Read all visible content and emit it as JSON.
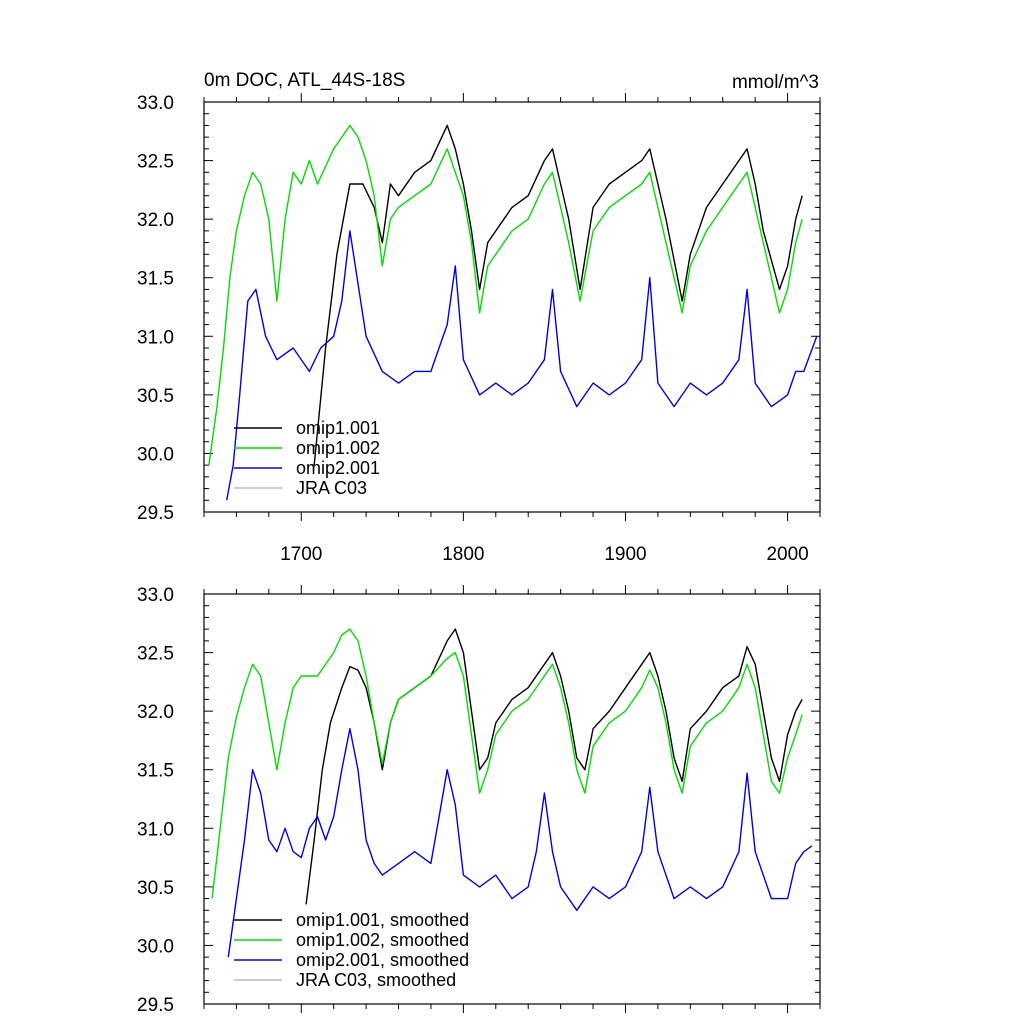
{
  "chart_data": [
    {
      "type": "line",
      "title": "0m DOC, ATL_44S-18S",
      "units": "mmol/m^3",
      "xlim": [
        1640,
        2020
      ],
      "ylim": [
        29.5,
        33.0
      ],
      "x_ticks": [
        1700,
        1800,
        1900,
        2000
      ],
      "y_ticks": [
        "29.5",
        "30.0",
        "30.5",
        "31.0",
        "31.5",
        "32.0",
        "32.5",
        "33.0"
      ],
      "legend_position": "bottom-left",
      "series": [
        {
          "name": "omip1.001",
          "color": "#000000",
          "x": [
            1708,
            1715,
            1722,
            1730,
            1738,
            1745,
            1750,
            1755,
            1760,
            1770,
            1780,
            1790,
            1795,
            1800,
            1805,
            1810,
            1815,
            1830,
            1840,
            1850,
            1855,
            1860,
            1865,
            1872,
            1880,
            1890,
            1900,
            1910,
            1915,
            1920,
            1925,
            1935,
            1940,
            1950,
            1960,
            1970,
            1975,
            1980,
            1985,
            1995,
            2000,
            2005,
            2009
          ],
          "y": [
            29.9,
            30.9,
            31.7,
            32.3,
            32.3,
            32.1,
            31.8,
            32.3,
            32.2,
            32.4,
            32.5,
            32.8,
            32.6,
            32.3,
            31.9,
            31.4,
            31.8,
            32.1,
            32.2,
            32.5,
            32.6,
            32.3,
            32.0,
            31.4,
            32.1,
            32.3,
            32.4,
            32.5,
            32.6,
            32.3,
            32.0,
            31.3,
            31.7,
            32.1,
            32.3,
            32.5,
            32.6,
            32.3,
            31.9,
            31.4,
            31.6,
            32.0,
            32.2
          ]
        },
        {
          "name": "omip1.002",
          "color": "#00dd00",
          "x": [
            1643,
            1648,
            1652,
            1656,
            1660,
            1665,
            1670,
            1675,
            1680,
            1685,
            1690,
            1695,
            1700,
            1705,
            1710,
            1720,
            1725,
            1730,
            1735,
            1740,
            1745,
            1750,
            1755,
            1760,
            1770,
            1780,
            1790,
            1800,
            1805,
            1810,
            1815,
            1830,
            1840,
            1850,
            1855,
            1860,
            1865,
            1872,
            1880,
            1890,
            1900,
            1910,
            1915,
            1920,
            1925,
            1935,
            1940,
            1950,
            1960,
            1970,
            1975,
            1980,
            1985,
            1995,
            2000,
            2005,
            2009
          ],
          "y": [
            29.9,
            30.4,
            30.9,
            31.5,
            31.9,
            32.2,
            32.4,
            32.3,
            32.0,
            31.3,
            32.0,
            32.4,
            32.3,
            32.5,
            32.3,
            32.6,
            32.7,
            32.8,
            32.7,
            32.5,
            32.2,
            31.6,
            32.0,
            32.1,
            32.2,
            32.3,
            32.6,
            32.2,
            31.8,
            31.2,
            31.6,
            31.9,
            32.0,
            32.3,
            32.4,
            32.1,
            31.8,
            31.3,
            31.9,
            32.1,
            32.2,
            32.3,
            32.4,
            32.1,
            31.8,
            31.2,
            31.6,
            31.9,
            32.1,
            32.3,
            32.4,
            32.1,
            31.8,
            31.2,
            31.4,
            31.8,
            32.0
          ]
        },
        {
          "name": "omip2.001",
          "color": "#0000e6",
          "x": [
            1654,
            1658,
            1662,
            1667,
            1672,
            1678,
            1685,
            1695,
            1705,
            1712,
            1720,
            1725,
            1730,
            1740,
            1750,
            1760,
            1770,
            1780,
            1790,
            1795,
            1800,
            1810,
            1820,
            1830,
            1840,
            1850,
            1855,
            1860,
            1870,
            1880,
            1890,
            1900,
            1910,
            1915,
            1920,
            1930,
            1940,
            1950,
            1960,
            1970,
            1975,
            1980,
            1990,
            2000,
            2005,
            2010,
            2018
          ],
          "y": [
            29.6,
            29.9,
            30.5,
            31.3,
            31.4,
            31.0,
            30.8,
            30.9,
            30.7,
            30.9,
            31.0,
            31.3,
            31.9,
            31.0,
            30.7,
            30.6,
            30.7,
            30.7,
            31.1,
            31.6,
            30.8,
            30.5,
            30.6,
            30.5,
            30.6,
            30.8,
            31.4,
            30.7,
            30.4,
            30.6,
            30.5,
            30.6,
            30.8,
            31.5,
            30.6,
            30.4,
            30.6,
            30.5,
            30.6,
            30.8,
            31.4,
            30.6,
            30.4,
            30.5,
            30.7,
            30.7,
            31.0
          ]
        },
        {
          "name": "JRA C03",
          "color": "#bbbbbb",
          "x": [],
          "y": []
        }
      ]
    },
    {
      "type": "line",
      "xlim": [
        1640,
        2020
      ],
      "ylim": [
        29.5,
        33.0
      ],
      "x_ticks": [
        1700,
        1800,
        1900,
        2000
      ],
      "y_ticks": [
        "29.5",
        "30.0",
        "30.5",
        "31.0",
        "31.5",
        "32.0",
        "32.5",
        "33.0"
      ],
      "legend_position": "bottom-left",
      "series": [
        {
          "name": "omip1.001, smoothed",
          "color": "#000000",
          "x": [
            1703,
            1708,
            1713,
            1718,
            1725,
            1730,
            1735,
            1740,
            1745,
            1750,
            1755,
            1760,
            1770,
            1780,
            1790,
            1795,
            1800,
            1805,
            1810,
            1815,
            1820,
            1830,
            1840,
            1850,
            1855,
            1860,
            1865,
            1870,
            1875,
            1880,
            1890,
            1900,
            1910,
            1915,
            1920,
            1925,
            1930,
            1935,
            1940,
            1950,
            1960,
            1970,
            1975,
            1980,
            1985,
            1990,
            1995,
            2000,
            2005,
            2009
          ],
          "y": [
            30.35,
            30.9,
            31.5,
            31.9,
            32.2,
            32.38,
            32.35,
            32.2,
            31.9,
            31.5,
            31.9,
            32.1,
            32.2,
            32.3,
            32.6,
            32.7,
            32.5,
            32.0,
            31.5,
            31.6,
            31.9,
            32.1,
            32.2,
            32.4,
            32.5,
            32.3,
            32.0,
            31.6,
            31.5,
            31.85,
            32.0,
            32.2,
            32.4,
            32.5,
            32.3,
            32.0,
            31.6,
            31.4,
            31.85,
            32.0,
            32.2,
            32.3,
            32.55,
            32.4,
            32.0,
            31.6,
            31.4,
            31.8,
            32.0,
            32.1
          ]
        },
        {
          "name": "omip1.002, smoothed",
          "color": "#00dd00",
          "x": [
            1645,
            1650,
            1655,
            1660,
            1665,
            1670,
            1675,
            1680,
            1685,
            1690,
            1695,
            1700,
            1710,
            1720,
            1725,
            1730,
            1735,
            1740,
            1745,
            1750,
            1755,
            1760,
            1770,
            1780,
            1790,
            1795,
            1800,
            1805,
            1810,
            1815,
            1820,
            1830,
            1840,
            1850,
            1855,
            1860,
            1865,
            1870,
            1875,
            1880,
            1890,
            1900,
            1910,
            1915,
            1920,
            1925,
            1930,
            1935,
            1940,
            1950,
            1960,
            1970,
            1975,
            1980,
            1985,
            1990,
            1995,
            2000,
            2005,
            2009
          ],
          "y": [
            30.4,
            31.0,
            31.6,
            31.95,
            32.2,
            32.4,
            32.3,
            31.9,
            31.5,
            31.9,
            32.2,
            32.3,
            32.3,
            32.5,
            32.65,
            32.7,
            32.6,
            32.3,
            31.9,
            31.55,
            31.9,
            32.1,
            32.2,
            32.3,
            32.45,
            32.5,
            32.3,
            31.8,
            31.3,
            31.5,
            31.8,
            32.0,
            32.1,
            32.3,
            32.4,
            32.2,
            31.9,
            31.5,
            31.3,
            31.7,
            31.9,
            32.0,
            32.2,
            32.35,
            32.2,
            31.9,
            31.5,
            31.3,
            31.7,
            31.9,
            32.0,
            32.2,
            32.4,
            32.2,
            31.8,
            31.4,
            31.3,
            31.6,
            31.8,
            31.97
          ]
        },
        {
          "name": "omip2.001, smoothed",
          "color": "#0000e6",
          "x": [
            1655,
            1660,
            1665,
            1670,
            1675,
            1680,
            1685,
            1690,
            1695,
            1700,
            1705,
            1710,
            1715,
            1720,
            1725,
            1730,
            1735,
            1740,
            1745,
            1750,
            1760,
            1770,
            1780,
            1785,
            1790,
            1795,
            1800,
            1810,
            1820,
            1830,
            1840,
            1845,
            1850,
            1855,
            1860,
            1870,
            1880,
            1890,
            1900,
            1910,
            1915,
            1920,
            1930,
            1940,
            1950,
            1960,
            1970,
            1975,
            1980,
            1990,
            2000,
            2005,
            2010,
            2015
          ],
          "y": [
            29.9,
            30.4,
            30.9,
            31.5,
            31.3,
            30.9,
            30.8,
            31.0,
            30.8,
            30.75,
            31.0,
            31.1,
            30.9,
            31.1,
            31.5,
            31.85,
            31.5,
            30.9,
            30.7,
            30.6,
            30.7,
            30.8,
            30.7,
            31.1,
            31.5,
            31.2,
            30.6,
            30.5,
            30.6,
            30.4,
            30.5,
            30.8,
            31.3,
            30.8,
            30.5,
            30.3,
            30.5,
            30.4,
            30.5,
            30.8,
            31.35,
            30.8,
            30.4,
            30.5,
            30.4,
            30.5,
            30.8,
            31.47,
            30.8,
            30.4,
            30.4,
            30.7,
            30.8,
            30.85
          ]
        },
        {
          "name": "JRA C03, smoothed",
          "color": "#bbbbbb",
          "x": [],
          "y": []
        }
      ]
    }
  ]
}
